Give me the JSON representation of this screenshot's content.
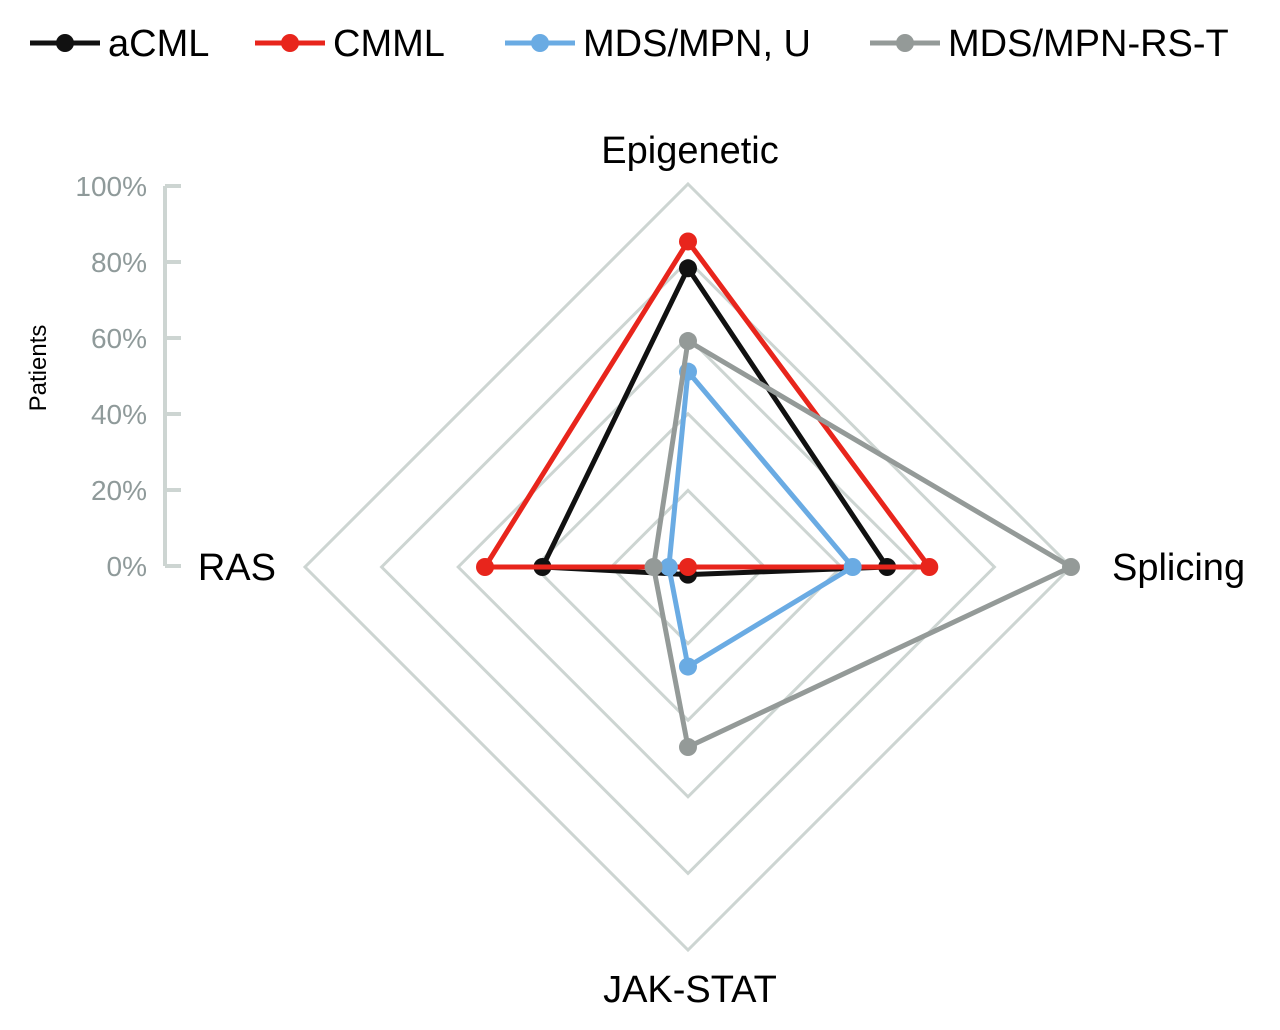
{
  "chart_data": {
    "type": "radar",
    "ylabel": "Patients",
    "axes": [
      "Epigenetic",
      "Splicing",
      "JAK-STAT",
      "RAS"
    ],
    "ticks": [
      "0%",
      "20%",
      "40%",
      "60%",
      "80%",
      "100%"
    ],
    "rlim": [
      0,
      100
    ],
    "grid": true,
    "legend_position": "top",
    "series": [
      {
        "name": "aCML",
        "color": "#111111",
        "values": [
          78,
          52,
          2,
          38
        ]
      },
      {
        "name": "CMML",
        "color": "#e8251c",
        "values": [
          85,
          63,
          0,
          53
        ]
      },
      {
        "name": "MDS/MPN, U",
        "color": "#6aabe3",
        "values": [
          51,
          43,
          26,
          5
        ]
      },
      {
        "name": "MDS/MPN-RS-T",
        "color": "#949a98",
        "values": [
          59,
          100,
          47,
          9
        ]
      }
    ],
    "colors": {
      "grid": "#cdd5d2",
      "tick_text": "#8f9a9a",
      "axis_line": "#cdd5d2"
    }
  }
}
